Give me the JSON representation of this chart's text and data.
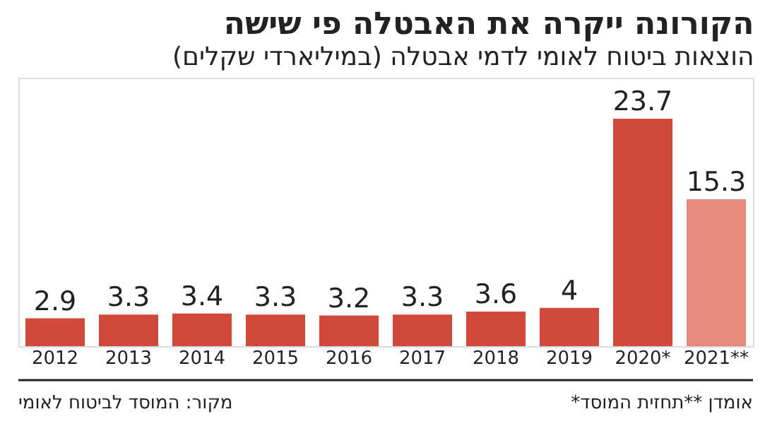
{
  "chart_data": {
    "type": "bar",
    "title": "הקורונה ייקרה את האבטלה פי שישה",
    "subtitle": "הוצאות ביטוח לאומי לדמי אבטלה (במיליארדי שקלים)",
    "categories": [
      "2012",
      "2013",
      "2014",
      "2015",
      "2016",
      "2017",
      "2018",
      "2019",
      "2020*",
      "2021**"
    ],
    "values": [
      2.9,
      3.3,
      3.4,
      3.3,
      3.2,
      3.3,
      3.6,
      4,
      23.7,
      15.3
    ],
    "colors": [
      "#d0493a",
      "#d0493a",
      "#d0493a",
      "#d0493a",
      "#d0493a",
      "#d0493a",
      "#d0493a",
      "#d0493a",
      "#d0493a",
      "#e58a7c"
    ],
    "data_labels": true,
    "annotations": [
      "*אומדן **תחזית המוסד",
      "מקור: המוסד לביטוח לאומי"
    ]
  }
}
